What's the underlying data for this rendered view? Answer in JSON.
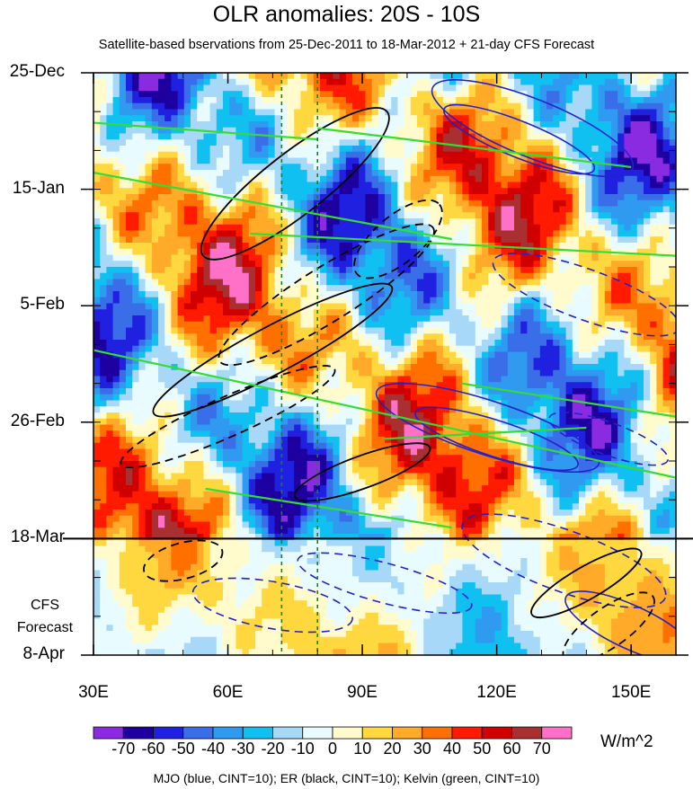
{
  "chart_data": {
    "type": "heatmap",
    "title": "OLR anomalies: 20S - 10S",
    "subtitle": "Satellite-based bservations from 25-Dec-2011 to 18-Mar-2012 + 21-day CFS Forecast",
    "x_ticks": [
      {
        "value": 30,
        "label": "30E"
      },
      {
        "value": 60,
        "label": "60E"
      },
      {
        "value": 90,
        "label": "90E"
      },
      {
        "value": 120,
        "label": "120E"
      },
      {
        "value": 150,
        "label": "150E"
      }
    ],
    "xlim": [
      30,
      160
    ],
    "y_ticks": [
      {
        "day": 0,
        "label": "25-Dec"
      },
      {
        "day": 21,
        "label": "15-Jan"
      },
      {
        "day": 42,
        "label": "5-Feb"
      },
      {
        "day": 63,
        "label": "26-Feb"
      },
      {
        "day": 84,
        "label": "18-Mar"
      },
      {
        "day": 105,
        "label": "8-Apr"
      }
    ],
    "ylim_days": [
      0,
      105
    ],
    "observation_end_day": 84,
    "forecast_label": [
      "CFS",
      "Forecast"
    ],
    "vertical_reference_lines_lon": [
      72,
      80
    ],
    "colorbar": {
      "units": "W/m^2",
      "labels": [
        "-70",
        "-60",
        "-50",
        "-40",
        "-30",
        "-20",
        "-10",
        "0",
        "10",
        "20",
        "30",
        "40",
        "50",
        "60",
        "70"
      ],
      "colors": [
        "#8a2be2",
        "#1e00a0",
        "#2020e0",
        "#3a6ee8",
        "#2f9af0",
        "#10c0f0",
        "#a8d8f8",
        "#e8fbff",
        "#fffbcc",
        "#ffd840",
        "#ffaa28",
        "#ff7000",
        "#ff1a00",
        "#d00000",
        "#a83030",
        "#ff70c8"
      ]
    },
    "contour_legend": "MJO (blue, CINT=10); ER (black, CINT=10); Kelvin (green, CINT=10)",
    "series": [
      {
        "name": "MJO",
        "color": "#2222cc"
      },
      {
        "name": "ER",
        "color": "#000000"
      },
      {
        "name": "Kelvin",
        "color": "#33dd33"
      }
    ]
  }
}
